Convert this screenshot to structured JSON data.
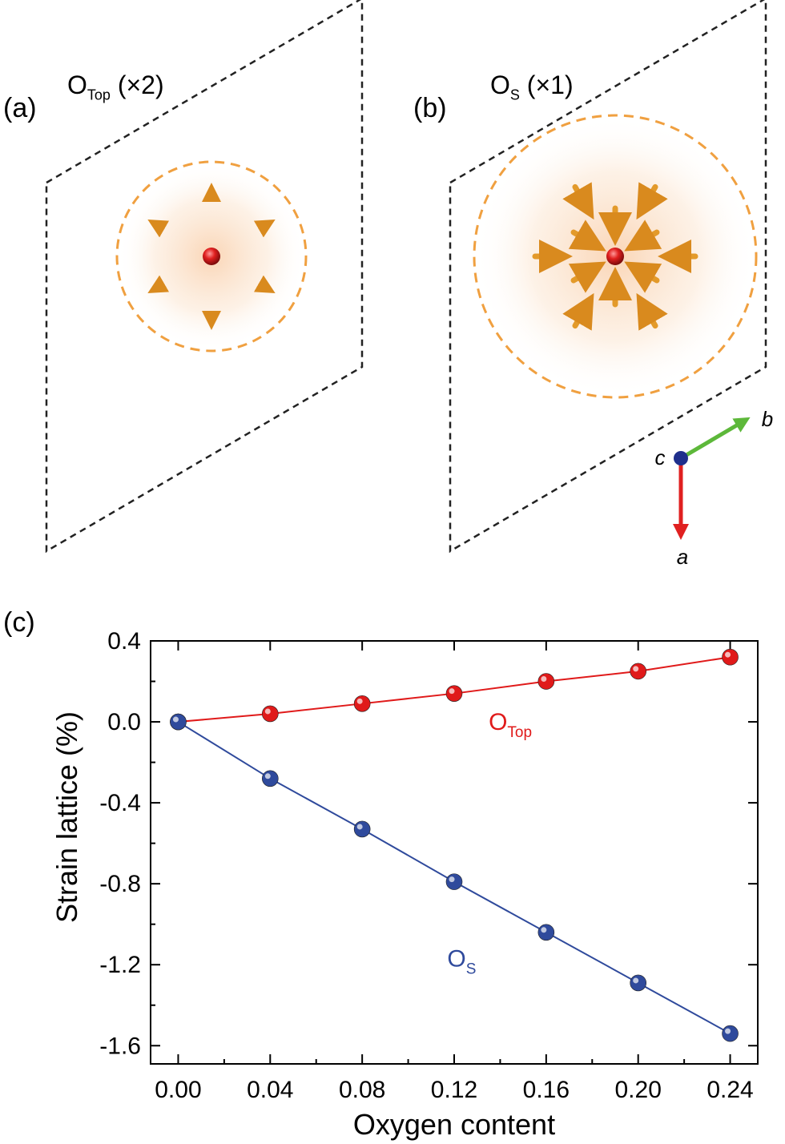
{
  "panels": {
    "a": {
      "label": "(a)",
      "title_main": "O",
      "title_sub": "Top",
      "title_suffix": " (×2)"
    },
    "b": {
      "label": "(b)",
      "title_main": "O",
      "title_sub": "S",
      "title_suffix": " (×1)"
    },
    "c": {
      "label": "(c)"
    }
  },
  "axes_indicator": {
    "a": "a",
    "b": "b",
    "c": "c"
  },
  "colors": {
    "atom_green": "#3f8a2c",
    "atom_yellow": "#d9ec6a",
    "oxygen": "#e01f1f",
    "arrow": "#e39a2a",
    "highlight": "#f4a040",
    "series_otop": "#e01a1a",
    "series_os": "#2f4a9c",
    "axis_a": "#e02020",
    "axis_b": "#5db83a",
    "axis_c": "#1f2f8c"
  },
  "chart_data": {
    "type": "scatter",
    "xlabel": "Oxygen content",
    "ylabel": "Strain lattice (%)",
    "xlim": [
      -0.012,
      0.252
    ],
    "ylim": [
      -1.69,
      0.4
    ],
    "xticks": [
      "0.00",
      "0.04",
      "0.08",
      "0.12",
      "0.16",
      "0.20",
      "0.24"
    ],
    "yticks": [
      "0.4",
      "0.0",
      "-0.4",
      "-0.8",
      "-1.2",
      "-1.6"
    ],
    "grid": false,
    "series": [
      {
        "name_main": "O",
        "name_sub": "Top",
        "color": "#e01a1a",
        "x": [
          0.0,
          0.04,
          0.08,
          0.12,
          0.16,
          0.2,
          0.24
        ],
        "y": [
          0.0,
          0.04,
          0.09,
          0.14,
          0.2,
          0.25,
          0.32
        ]
      },
      {
        "name_main": "O",
        "name_sub": "S",
        "color": "#2f4a9c",
        "x": [
          0.0,
          0.04,
          0.08,
          0.12,
          0.16,
          0.2,
          0.24
        ],
        "y": [
          0.0,
          -0.28,
          -0.53,
          -0.79,
          -1.04,
          -1.29,
          -1.54
        ]
      }
    ]
  }
}
